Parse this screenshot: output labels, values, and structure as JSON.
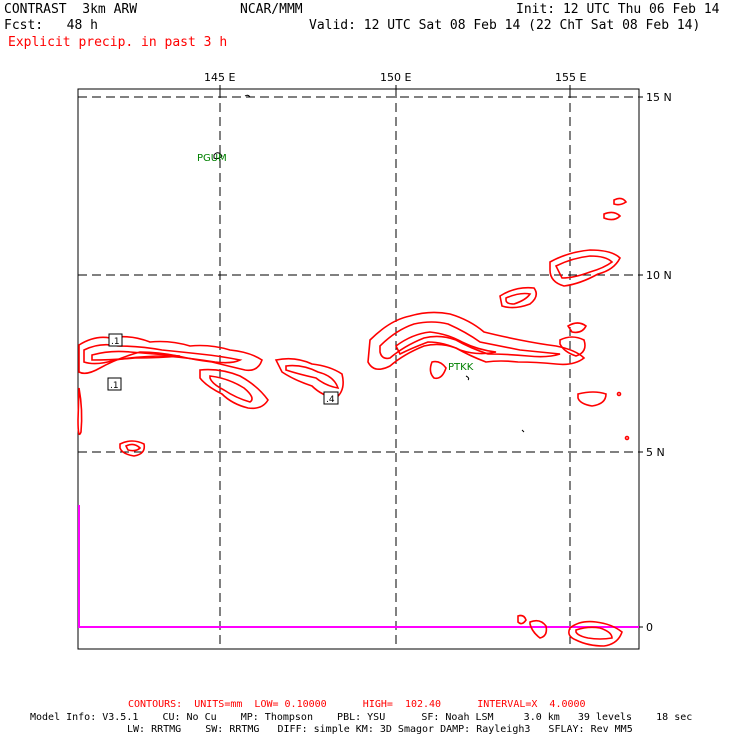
{
  "header": {
    "model": "CONTRAST  3km ARW",
    "org": "NCAR/MMM",
    "init": "Init: 12 UTC Thu 06 Feb 14",
    "fcst": "Fcst:   48 h",
    "valid": "Valid: 12 UTC Sat 08 Feb 14 (22 ChT Sat 08 Feb 14)",
    "field": "Explicit precip. in past 3 h"
  },
  "map": {
    "lon_labels": [
      "145 E",
      "150 E",
      "155 E"
    ],
    "lat_labels": [
      "15 N",
      "10 N",
      "5 N",
      "0"
    ],
    "stations": [
      "PGUM",
      "PTKK"
    ],
    "contour_labels": [
      ".1",
      ".1",
      ".4"
    ],
    "colors": {
      "contour": "#ff0000",
      "boundary": "#ff00ff",
      "grid": "#000000",
      "station": "#008000"
    }
  },
  "footer": {
    "contours": "CONTOURS:  UNITS=mm  LOW= 0.10000      HIGH=  102.40      INTERVAL=X  4.0000",
    "line1": "Model Info: V3.5.1    CU: No Cu    MP: Thompson    PBL: YSU      SF: Noah LSM     3.0 km   39 levels    18 sec",
    "line2": "LW: RRTMG    SW: RRTMG   DIFF: simple KM: 3D Smagor DAMP: Rayleigh3   SFLAY: Rev MM5"
  }
}
